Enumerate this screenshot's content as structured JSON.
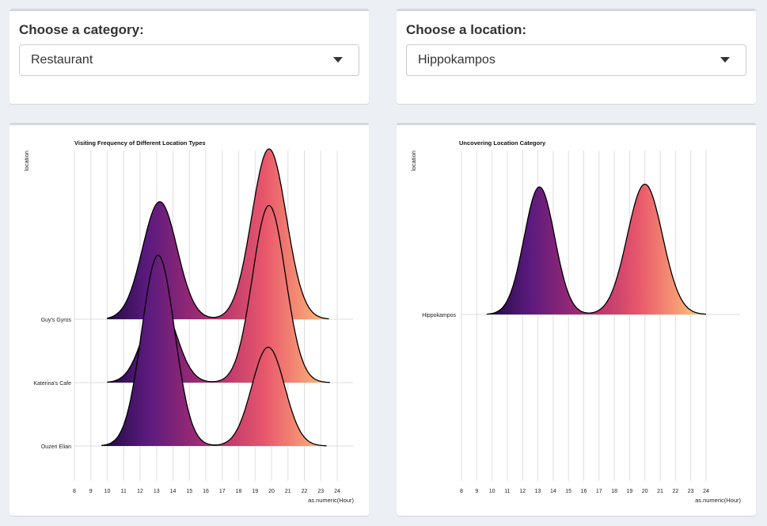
{
  "category_select": {
    "label": "Choose a category:",
    "value": "Restaurant"
  },
  "location_select": {
    "label": "Choose a location:",
    "value": "Hippokampos"
  },
  "colors": {
    "gradient_start": "#1e0b3f",
    "gradient_mid1": "#5b1a7e",
    "gradient_mid2": "#b3316f",
    "gradient_mid3": "#e8586b",
    "gradient_end": "#ffc07a",
    "grid": "#dedede"
  },
  "chart_data": [
    {
      "type": "ridgeline",
      "title": "Visiting Frequency of Different Location Types",
      "xlabel": "as.numeric(Hour)",
      "ylabel": "location",
      "x_ticks": [
        8,
        9,
        10,
        11,
        12,
        13,
        14,
        15,
        16,
        17,
        18,
        19,
        20,
        21,
        22,
        23,
        24
      ],
      "xlim": [
        8,
        24
      ],
      "series": [
        {
          "name": "Guy's Gyros",
          "x_range": [
            9.99,
            23.5
          ],
          "peaks": [
            {
              "mu": 13.2,
              "sigma": 1.05,
              "height": 0.69
            },
            {
              "mu": 19.85,
              "sigma": 1.05,
              "height": 1.0
            }
          ]
        },
        {
          "name": "Katerina's Cafe",
          "x_range": [
            9.99,
            23.55
          ],
          "peaks": [
            {
              "mu": 13.2,
              "sigma": 1.0,
              "height": 0.47
            },
            {
              "mu": 19.85,
              "sigma": 1.0,
              "height": 1.04
            }
          ]
        },
        {
          "name": "Ouzeri Elian",
          "x_range": [
            9.65,
            23.35
          ],
          "peaks": [
            {
              "mu": 13.1,
              "sigma": 1.0,
              "height": 1.12
            },
            {
              "mu": 19.8,
              "sigma": 1.0,
              "height": 0.58
            }
          ]
        }
      ]
    },
    {
      "type": "ridgeline",
      "title": "Uncovering Location Category",
      "xlabel": "as.numeric(Hour)",
      "ylabel": "location",
      "x_ticks": [
        8,
        9,
        10,
        11,
        12,
        13,
        14,
        15,
        16,
        17,
        18,
        19,
        20,
        21,
        22,
        23,
        24
      ],
      "xlim": [
        8,
        24
      ],
      "series": [
        {
          "name": "Hippokampos",
          "x_range": [
            9.65,
            24.0
          ],
          "peaks": [
            {
              "mu": 13.1,
              "sigma": 1.0,
              "height": 0.92
            },
            {
              "mu": 20.0,
              "sigma": 1.15,
              "height": 0.94
            }
          ]
        }
      ]
    }
  ]
}
